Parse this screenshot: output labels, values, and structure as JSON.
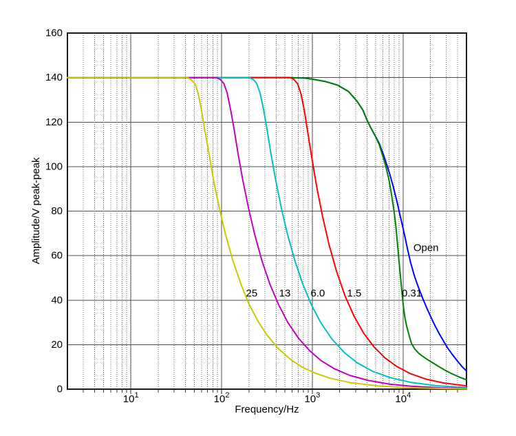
{
  "figure": {
    "background": "#ffffff",
    "border_color": "#1a1a1a",
    "grid_color": "#4d4d4d",
    "minor_grid_color": "#595959",
    "text_color": "#000000",
    "x_axis": {
      "title": "Frequency/Hz",
      "scale": "log",
      "min": 2,
      "max": 50000,
      "major_ticks": [
        {
          "value": 10,
          "base": "10",
          "exponent": "1"
        },
        {
          "value": 100,
          "base": "10",
          "exponent": "2"
        },
        {
          "value": 1000,
          "base": "10",
          "exponent": "3"
        },
        {
          "value": 10000,
          "base": "10",
          "exponent": "4"
        }
      ],
      "minor_grid_style": "dotted"
    },
    "y_axis": {
      "title": "Amplitude/V peak-peak",
      "scale": "linear",
      "min": 0,
      "max": 160,
      "ticks": [
        0,
        20,
        40,
        60,
        80,
        100,
        120,
        140,
        160
      ]
    }
  },
  "chart_data": {
    "type": "line",
    "title": "",
    "xlabel": "Frequency/Hz",
    "ylabel": "Amplitude/V peak-peak",
    "x_scale": "log",
    "xlim": [
      2,
      50000
    ],
    "ylim": [
      0,
      160
    ],
    "grid": true,
    "legend_position": "none",
    "flat_amplitude_v": 140,
    "series": [
      {
        "name": "Open",
        "color": "#0000ff",
        "points": [
          [
            2,
            140
          ],
          [
            500,
            140
          ],
          [
            800,
            139.8
          ],
          [
            1000,
            139.3
          ],
          [
            1400,
            138.2
          ],
          [
            1900,
            136.6
          ],
          [
            2500,
            133.8
          ],
          [
            3100,
            129.5
          ],
          [
            3600,
            125.5
          ],
          [
            4000,
            121
          ],
          [
            4400,
            117.5
          ],
          [
            4900,
            114
          ],
          [
            5450,
            110.5
          ],
          [
            6000,
            106
          ],
          [
            6600,
            101
          ],
          [
            7100,
            97
          ],
          [
            7800,
            91
          ],
          [
            8600,
            84
          ],
          [
            9400,
            77
          ],
          [
            10300,
            70
          ],
          [
            11200,
            63
          ],
          [
            12100,
            57
          ],
          [
            13300,
            51
          ],
          [
            14700,
            46
          ],
          [
            16200,
            41.5
          ],
          [
            18000,
            37
          ],
          [
            20200,
            32.5
          ],
          [
            22500,
            28.5
          ],
          [
            25000,
            25
          ],
          [
            28000,
            21.5
          ],
          [
            31000,
            18.5
          ],
          [
            35000,
            15.5
          ],
          [
            40000,
            12.5
          ],
          [
            45000,
            10
          ],
          [
            50000,
            8.2
          ]
        ]
      },
      {
        "name": "0.31",
        "color": "#008000",
        "points": [
          [
            2,
            140
          ],
          [
            500,
            140
          ],
          [
            800,
            139.8
          ],
          [
            1000,
            139.3
          ],
          [
            1400,
            138.2
          ],
          [
            1900,
            136.6
          ],
          [
            2500,
            133.8
          ],
          [
            3100,
            129.5
          ],
          [
            3600,
            125.5
          ],
          [
            4000,
            121
          ],
          [
            4400,
            117.5
          ],
          [
            4900,
            114
          ],
          [
            5450,
            110
          ],
          [
            6000,
            104.5
          ],
          [
            6470,
            100
          ],
          [
            7000,
            94
          ],
          [
            7500,
            87
          ],
          [
            7900,
            81
          ],
          [
            8300,
            74
          ],
          [
            8700,
            65
          ],
          [
            9100,
            56
          ],
          [
            9500,
            48
          ],
          [
            9800,
            42
          ],
          [
            10100,
            37
          ],
          [
            10500,
            32
          ],
          [
            11000,
            28
          ],
          [
            11700,
            24
          ],
          [
            12400,
            20.5
          ],
          [
            13500,
            18
          ],
          [
            15000,
            16
          ],
          [
            17500,
            14
          ],
          [
            20000,
            12.5
          ],
          [
            24000,
            10.5
          ],
          [
            29000,
            8.5
          ],
          [
            35000,
            6.8
          ],
          [
            42000,
            5.4
          ],
          [
            50000,
            4.2
          ]
        ]
      },
      {
        "name": "1.5",
        "color": "#ff0000",
        "points": [
          [
            2,
            140
          ],
          [
            400,
            140
          ],
          [
            570,
            140
          ],
          [
            630,
            139.1
          ],
          [
            690,
            137.1
          ],
          [
            750,
            132.7
          ],
          [
            820,
            124.7
          ],
          [
            900,
            114.3
          ],
          [
            990,
            103.6
          ],
          [
            1120,
            90.8
          ],
          [
            1300,
            77.4
          ],
          [
            1530,
            64.9
          ],
          [
            1850,
            52.9
          ],
          [
            2300,
            41.8
          ],
          [
            2900,
            32.6
          ],
          [
            3700,
            25
          ],
          [
            4800,
            18.9
          ],
          [
            6300,
            14.1
          ],
          [
            8500,
            10.2
          ],
          [
            12000,
            7
          ],
          [
            18000,
            4.5
          ],
          [
            28000,
            2.8
          ],
          [
            50000,
            1.5
          ]
        ]
      },
      {
        "name": "6.0",
        "color": "#00bfbf",
        "points": [
          [
            2,
            140
          ],
          [
            150,
            140
          ],
          [
            202,
            140
          ],
          [
            224,
            139.1
          ],
          [
            244,
            137.3
          ],
          [
            265,
            133.2
          ],
          [
            291,
            125.4
          ],
          [
            318,
            116.4
          ],
          [
            349,
            106.2
          ],
          [
            396,
            93.6
          ],
          [
            458,
            81
          ],
          [
            534,
            69.4
          ],
          [
            647,
            57.3
          ],
          [
            791,
            46.9
          ],
          [
            976,
            38
          ],
          [
            1230,
            30.1
          ],
          [
            1640,
            22.6
          ],
          [
            2260,
            16.4
          ],
          [
            3080,
            12
          ],
          [
            4620,
            8
          ],
          [
            7190,
            5.2
          ],
          [
            12300,
            3
          ],
          [
            22600,
            1.6
          ],
          [
            50000,
            0.74
          ]
        ]
      },
      {
        "name": "13",
        "color": "#bf00bf",
        "points": [
          [
            2,
            140
          ],
          [
            60,
            140
          ],
          [
            88,
            140
          ],
          [
            97,
            139.1
          ],
          [
            106,
            137.3
          ],
          [
            115,
            133.2
          ],
          [
            126,
            125.4
          ],
          [
            138,
            116.4
          ],
          [
            151,
            106.3
          ],
          [
            172,
            93.6
          ],
          [
            199,
            81
          ],
          [
            232,
            69.4
          ],
          [
            280,
            57.4
          ],
          [
            342,
            47
          ],
          [
            425,
            38
          ],
          [
            539,
            29.9
          ],
          [
            705,
            22.9
          ],
          [
            933,
            17.3
          ],
          [
            1240,
            12.9
          ],
          [
            1760,
            9.1
          ],
          [
            2590,
            6.2
          ],
          [
            4140,
            3.9
          ],
          [
            7250,
            2.2
          ],
          [
            12400,
            1.3
          ],
          [
            25900,
            0.62
          ],
          [
            50000,
            0.32
          ]
        ]
      },
      {
        "name": "25",
        "color": "#c9c900",
        "points": [
          [
            2,
            140
          ],
          [
            20,
            140
          ],
          [
            42,
            140
          ],
          [
            46,
            139.1
          ],
          [
            51,
            137.2
          ],
          [
            55,
            133.2
          ],
          [
            60,
            125.5
          ],
          [
            65,
            116.8
          ],
          [
            72,
            106.9
          ],
          [
            82,
            93.3
          ],
          [
            95,
            80.9
          ],
          [
            111,
            69.3
          ],
          [
            133,
            57.8
          ],
          [
            164,
            47
          ],
          [
            200,
            38.3
          ],
          [
            254,
            30.3
          ],
          [
            317,
            24.3
          ],
          [
            423,
            18.2
          ],
          [
            580,
            13.2
          ],
          [
            790,
            9.7
          ],
          [
            1060,
            7.3
          ],
          [
            1580,
            4.9
          ],
          [
            2640,
            2.9
          ],
          [
            5280,
            1.5
          ],
          [
            10600,
            0.7
          ],
          [
            21100,
            0.36
          ],
          [
            50000,
            0.15
          ]
        ]
      }
    ],
    "annotations": [
      {
        "text": "25",
        "f": 215,
        "v": 43
      },
      {
        "text": "13",
        "f": 498,
        "v": 43
      },
      {
        "text": "6.0",
        "f": 1150,
        "v": 43
      },
      {
        "text": "1.5",
        "f": 2900,
        "v": 43
      },
      {
        "text": "0.31",
        "f": 12500,
        "v": 43
      },
      {
        "text": "Open",
        "f": 17900,
        "v": 63.5
      }
    ]
  }
}
